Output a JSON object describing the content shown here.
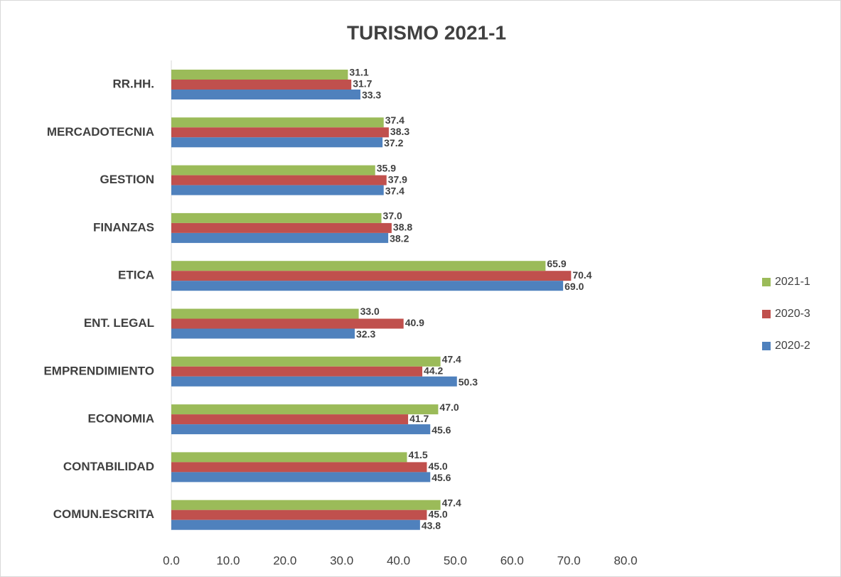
{
  "chart_data": {
    "type": "bar",
    "orientation": "horizontal",
    "title": "TURISMO 2021-1",
    "categories": [
      "RR.HH.",
      "MERCADOTECNIA",
      "GESTION",
      "FINANZAS",
      "ETICA",
      "ENT. LEGAL",
      "EMPRENDIMIENTO",
      "ECONOMIA",
      "CONTABILIDAD",
      "COMUN.ESCRITA"
    ],
    "series": [
      {
        "name": "2021-1",
        "color": "#9bbb59",
        "values": [
          31.1,
          37.4,
          35.9,
          37.0,
          65.9,
          33.0,
          47.4,
          47.0,
          41.5,
          47.4
        ],
        "value_labels": [
          "31.1",
          "37.4",
          "35.9",
          "37.0",
          "65.9",
          "33.0",
          "47.4",
          "47.0",
          "41.5",
          "47.4"
        ]
      },
      {
        "name": "2020-3",
        "color": "#c0504d",
        "values": [
          31.7,
          38.3,
          37.9,
          38.8,
          70.4,
          40.9,
          44.2,
          41.7,
          45.0,
          45.0
        ],
        "value_labels": [
          "31.7",
          "38.3",
          "37.9",
          "38.8",
          "70.4",
          "40.9",
          "44.2",
          "41.7",
          "45.0",
          "45.0"
        ]
      },
      {
        "name": "2020-2",
        "color": "#4f81bd",
        "values": [
          33.3,
          37.2,
          37.4,
          38.2,
          69.0,
          32.3,
          50.3,
          45.6,
          45.6,
          43.8
        ],
        "value_labels": [
          "33.3",
          "37.2",
          "37.4",
          "38.2",
          "69.0",
          "32.3",
          "50.3",
          "45.6",
          "45.6",
          "43.8"
        ]
      }
    ],
    "xlim": [
      0,
      80
    ],
    "xticks": [
      {
        "value": 0,
        "label": "0.0"
      },
      {
        "value": 10,
        "label": "10.0"
      },
      {
        "value": 20,
        "label": "20.0"
      },
      {
        "value": 30,
        "label": "30.0"
      },
      {
        "value": 40,
        "label": "40.0"
      },
      {
        "value": 50,
        "label": "50.0"
      },
      {
        "value": 60,
        "label": "60.0"
      },
      {
        "value": 70,
        "label": "70.0"
      },
      {
        "value": 80,
        "label": "80.0"
      }
    ],
    "grid": false,
    "legend": "right"
  }
}
